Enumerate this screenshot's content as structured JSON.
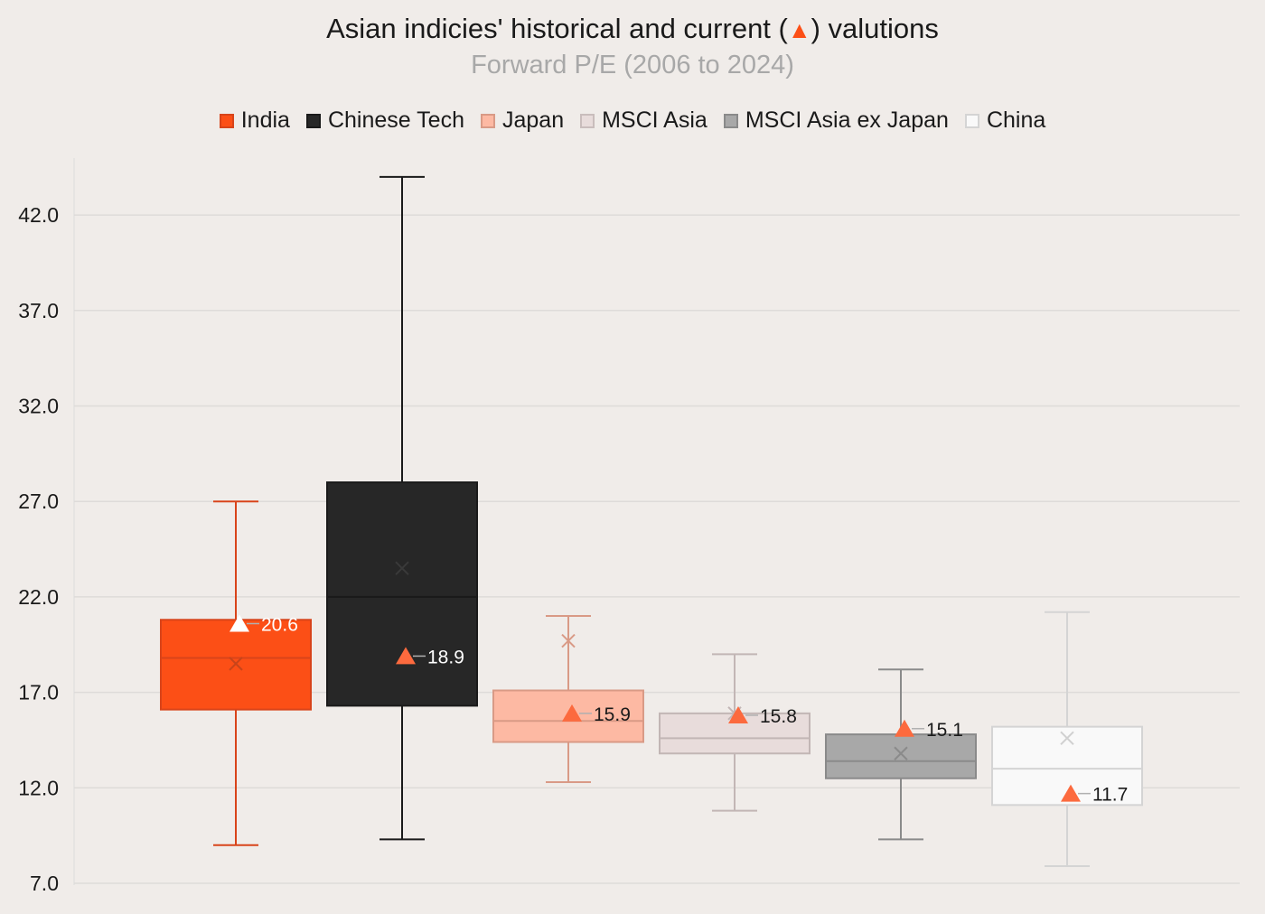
{
  "title": {
    "main_before": "Asian indicies' historical and current (",
    "marker": "▲",
    "main_after": ") valutions",
    "subtitle": "Forward P/E (2006 to 2024)"
  },
  "legend": [
    {
      "label": "India",
      "fill": "#fc4f16",
      "stroke": "#d8441a"
    },
    {
      "label": "Chinese Tech",
      "fill": "#272727",
      "stroke": "#1a1a1a"
    },
    {
      "label": "Japan",
      "fill": "#fdb9a3",
      "stroke": "#d99a86"
    },
    {
      "label": "MSCI Asia",
      "fill": "#e8dcdb",
      "stroke": "#c9bdbc"
    },
    {
      "label": "MSCI Asia ex Japan",
      "fill": "#a8a8a8",
      "stroke": "#8a8a8a"
    },
    {
      "label": "China",
      "fill": "#f9f9f9",
      "stroke": "#d4d4d4"
    }
  ],
  "chart_data": {
    "type": "box",
    "title": "Asian indicies' historical and current (▲) valutions",
    "subtitle": "Forward P/E (2006 to 2024)",
    "xlabel": "",
    "ylabel": "",
    "ylim": [
      7.0,
      45.0
    ],
    "yticks": [
      7.0,
      12.0,
      17.0,
      22.0,
      27.0,
      32.0,
      37.0,
      42.0
    ],
    "grid": true,
    "legend_position": "top",
    "current_marker": "triangle",
    "current_marker_color": "#fc6a3e",
    "series": [
      {
        "name": "India",
        "min": 9.0,
        "q1": 16.1,
        "median": 18.8,
        "q3": 20.8,
        "max": 27.0,
        "mean": 18.5,
        "current": 20.6,
        "current_label": "20.6",
        "fill": "#fc4f16",
        "stroke": "#d8441a",
        "marker_fill": "#ffffff",
        "label_color": "#ffffff"
      },
      {
        "name": "Chinese Tech",
        "min": 9.3,
        "q1": 16.3,
        "median": 22.0,
        "q3": 28.0,
        "max": 44.0,
        "mean": 23.5,
        "current": 18.9,
        "current_label": "18.9",
        "fill": "#272727",
        "stroke": "#1a1a1a",
        "marker_fill": "#fc6a3e",
        "label_color": "#ffffff"
      },
      {
        "name": "Japan",
        "min": 12.3,
        "q1": 14.4,
        "median": 15.5,
        "q3": 17.1,
        "max": 21.0,
        "mean": 19.7,
        "current": 15.9,
        "current_label": "15.9",
        "fill": "#fdb9a3",
        "stroke": "#d99a86",
        "marker_fill": "#fc6a3e",
        "label_color": "#1a1a1a"
      },
      {
        "name": "MSCI Asia",
        "min": 10.8,
        "q1": 13.8,
        "median": 14.6,
        "q3": 15.9,
        "max": 19.0,
        "mean": 15.9,
        "current": 15.8,
        "current_label": "15.8",
        "fill": "#e8dcdb",
        "stroke": "#c2b6b5",
        "marker_fill": "#fc6a3e",
        "label_color": "#1a1a1a"
      },
      {
        "name": "MSCI Asia ex Japan",
        "min": 9.3,
        "q1": 12.5,
        "median": 13.4,
        "q3": 14.8,
        "max": 18.2,
        "mean": 13.8,
        "current": 15.1,
        "current_label": "15.1",
        "fill": "#a8a8a8",
        "stroke": "#8a8a8a",
        "marker_fill": "#fc6a3e",
        "label_color": "#1a1a1a"
      },
      {
        "name": "China",
        "min": 7.9,
        "q1": 11.1,
        "median": 13.0,
        "q3": 15.2,
        "max": 21.2,
        "mean": 14.6,
        "current": 11.7,
        "current_label": "11.7",
        "fill": "#f9f9f9",
        "stroke": "#d4d4d4",
        "marker_fill": "#fc6a3e",
        "label_color": "#1a1a1a"
      }
    ]
  }
}
